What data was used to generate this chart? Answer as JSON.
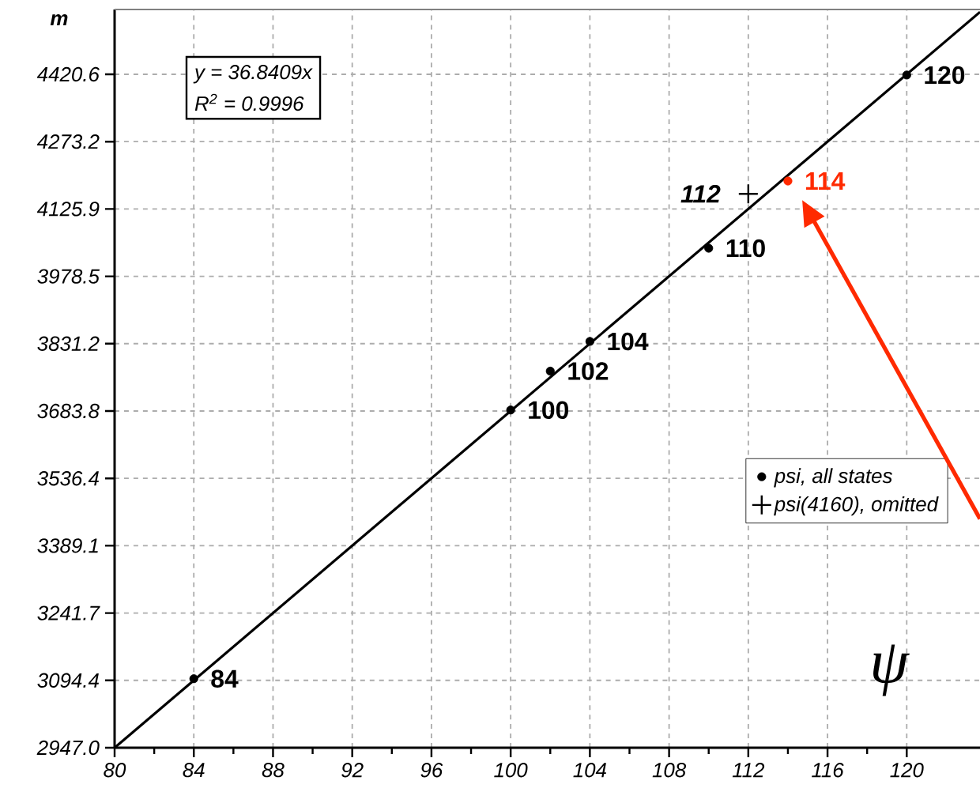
{
  "chart_data": {
    "type": "scatter",
    "ylabel": "m",
    "xlim": [
      80,
      123.7
    ],
    "ylim": [
      2947.0,
      4562.4
    ],
    "xticks": [
      80,
      84,
      88,
      92,
      96,
      100,
      104,
      108,
      112,
      116,
      120
    ],
    "yticks": [
      {
        "value": 2947.0,
        "label": "2947.0"
      },
      3094.4,
      3241.7,
      3389.1,
      3536.4,
      3683.8,
      3831.2,
      3978.5,
      4125.9,
      4273.2,
      4420.6
    ],
    "grid": true,
    "legend": "right",
    "annotations": [
      "y = 36.8409x",
      "R$^{2}$ = 0.9996",
      "ψ",
      {
        "text": "84",
        "x": 84,
        "y": 3098
      },
      {
        "text": "100",
        "x": 100,
        "y": 3686
      },
      {
        "text": "102",
        "x": 102,
        "y": 3771
      },
      {
        "text": "104",
        "x": 104,
        "y": 3836
      },
      {
        "text": "110",
        "x": 110,
        "y": 4040
      },
      {
        "text": "120",
        "x": 120,
        "y": 4419
      },
      {
        "text": "112",
        "x": 112,
        "y": 4159
      },
      {
        "text": "114",
        "x": 114,
        "y": 4187
      }
    ],
    "series": [
      {
        "name": "psi, all states",
        "marker": "circle",
        "color": "#000000",
        "x": [
          84,
          100,
          102,
          104,
          110,
          120
        ],
        "values": [
          3098,
          3686,
          3771,
          3836,
          4040,
          4419
        ]
      },
      {
        "name": "psi(4160), omitted",
        "marker": "cross",
        "color": "#000000",
        "x": [
          112
        ],
        "values": [
          4159
        ]
      },
      {
        "marker": "circle",
        "color": "#ff2a00",
        "x": [
          114
        ],
        "values": [
          4187
        ]
      },
      {
        "type": "line",
        "marker": "none",
        "line_style": "solid",
        "color": "#000000",
        "x": [
          80,
          123.7
        ],
        "values": [
          2947,
          4557
        ]
      }
    ]
  }
}
